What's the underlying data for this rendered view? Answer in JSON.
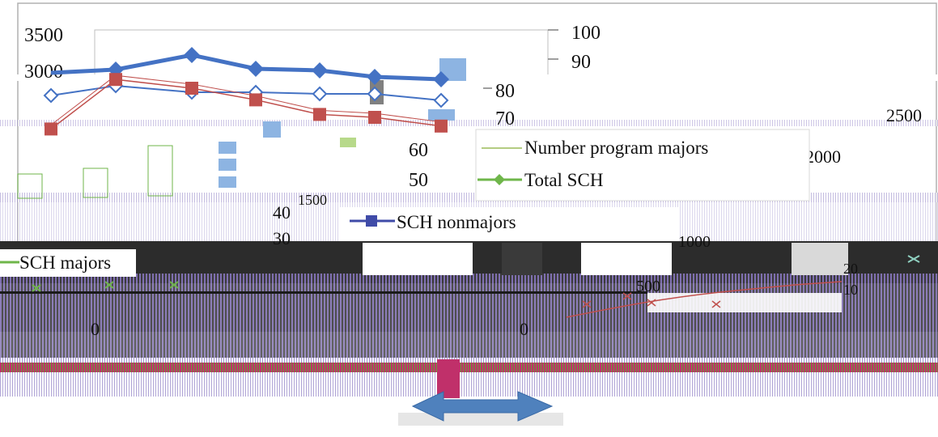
{
  "chart_data": {
    "type": "line",
    "title": "",
    "xlabel": "",
    "ylabel": "",
    "legend": {
      "entries": [
        "Number program majors",
        "Total SCH",
        "SCH nonmajors",
        "SCH majors"
      ],
      "placement": "inside-center"
    },
    "axes": {
      "top_left_ticks": [
        "3500",
        "3000"
      ],
      "top_right_ticks": [
        "100",
        "90",
        "80",
        "70",
        "60",
        "50",
        "40",
        "30"
      ],
      "far_right_ticks": [
        "2500",
        "2000",
        "1500",
        "1000",
        "500",
        "0"
      ],
      "left_zero": "0",
      "small_ticks": [
        "20",
        "10"
      ]
    },
    "series": [
      {
        "name": "SCH nonmajors",
        "values": [
          2980,
          3020,
          3200,
          3030,
          3010,
          2930,
          2900
        ]
      },
      {
        "name": "SCH majors",
        "values": [
          2840,
          2960,
          2880,
          2880,
          2860,
          2860,
          2780
        ]
      },
      {
        "name": "Number program majors",
        "values": [
          66,
          83,
          80,
          76,
          71,
          70,
          67
        ]
      }
    ],
    "colors": {
      "blue": "#4472c4",
      "red": "#c0504d",
      "green": "#6fb64a",
      "lightblue": "#8db4e2",
      "gray": "#808080",
      "purple": "#7f6fb0",
      "magenta": "#c0306a",
      "navy": "#3f4ba8"
    }
  }
}
